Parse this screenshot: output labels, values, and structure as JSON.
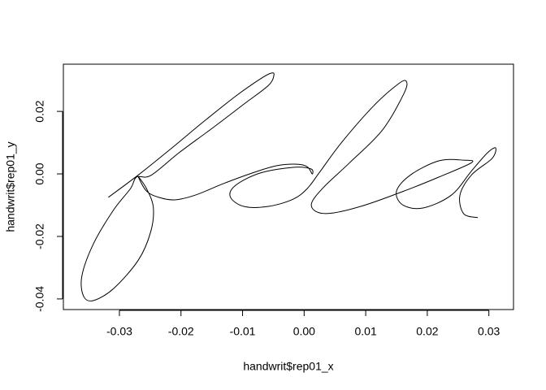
{
  "chart_data": {
    "type": "line",
    "x_label": "handwrit$rep01_x",
    "y_label": "handwrit$rep01_y",
    "xlim": [
      -0.0391,
      0.034
    ],
    "ylim": [
      -0.0434,
      0.0351
    ],
    "xticks": [
      -0.03,
      -0.02,
      -0.01,
      {
        "value": 0,
        "label": "0.00"
      },
      0.01,
      0.02,
      0.03
    ],
    "yticks": [
      -0.04,
      -0.02,
      {
        "value": 0,
        "label": "0.00"
      },
      0.02
    ],
    "color": "#000000",
    "x": [
      -0.0318,
      -0.0269,
      -0.0216,
      -0.0164,
      -0.0111,
      -0.0071,
      -0.0054,
      -0.0049,
      -0.0058,
      -0.0098,
      -0.015,
      -0.0203,
      -0.0249,
      -0.0272,
      -0.0282,
      -0.0309,
      -0.0342,
      -0.0361,
      -0.0358,
      -0.0342,
      -0.0309,
      -0.0269,
      -0.0249,
      -0.0245,
      -0.0256,
      -0.0269,
      -0.0256,
      -0.0236,
      -0.021,
      -0.0177,
      -0.0131,
      -0.0084,
      -0.0045,
      -0.0012,
      0.0005,
      0.0013,
      0.0011,
      -0.0018,
      -0.0071,
      -0.0111,
      -0.012,
      -0.0098,
      -0.0058,
      -0.0018,
      0.0005,
      0.0025,
      0.0061,
      0.0113,
      0.0153,
      0.0166,
      0.0162,
      0.0127,
      0.0074,
      0.0032,
      0.0012,
      0.0021,
      0.0047,
      0.01,
      0.0166,
      0.0219,
      0.0272,
      0.0259,
      0.0219,
      0.0173,
      0.015,
      0.016,
      0.0193,
      0.0239,
      0.0272,
      0.0298,
      0.0311,
      0.0305,
      0.0272,
      0.0253,
      0.0259,
      0.0282
    ],
    "values": [
      -0.0075,
      -0.0003,
      0.0081,
      0.0166,
      0.0249,
      0.0304,
      0.0322,
      0.0317,
      0.0283,
      0.0223,
      0.0145,
      0.0068,
      -0.0005,
      -0.001,
      -0.0047,
      -0.0114,
      -0.0223,
      -0.0327,
      -0.0392,
      -0.0405,
      -0.0366,
      -0.0275,
      -0.0184,
      -0.0106,
      -0.0047,
      -0.001,
      -0.0055,
      -0.0075,
      -0.0083,
      -0.0068,
      -0.0031,
      0.0003,
      0.0026,
      0.0031,
      0.0023,
      0.0,
      0.0016,
      0.0021,
      0.0003,
      -0.0036,
      -0.0073,
      -0.0104,
      -0.0104,
      -0.0081,
      -0.0047,
      0.0005,
      0.0101,
      0.0218,
      0.0288,
      0.0296,
      0.0257,
      0.014,
      0.0036,
      -0.0042,
      -0.0094,
      -0.0122,
      -0.0125,
      -0.0099,
      -0.0052,
      -0.001,
      0.0036,
      0.0044,
      0.0042,
      -0.0003,
      -0.0055,
      -0.0099,
      -0.0109,
      -0.0068,
      0.001,
      0.0068,
      0.0083,
      0.0049,
      -0.0003,
      -0.0068,
      -0.0127,
      -0.014
    ]
  }
}
